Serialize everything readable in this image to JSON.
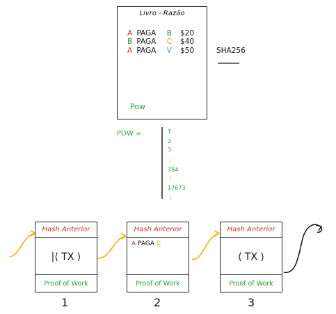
{
  "ledger": {
    "title": "Livro - Razão",
    "rows": [
      {
        "from": "A",
        "verb": "PAGA",
        "to": "B",
        "amount": "$20",
        "from_color": "#c0392b",
        "to_color": "#2e8b2e"
      },
      {
        "from": "B",
        "verb": "PAGA",
        "to": "C",
        "amount": "$40",
        "from_color": "#2e8b2e",
        "to_color": "#e0a400"
      },
      {
        "from": "A",
        "verb": "PAGA",
        "to": "V",
        "amount": "$50",
        "from_color": "#c0392b",
        "to_color": "#4a90c8"
      }
    ],
    "pow_label": "Pow"
  },
  "hash_fn": {
    "label": "SHA256"
  },
  "pow_search": {
    "label": "POW =",
    "nonces": [
      "1",
      "2",
      "3",
      "⋮",
      "784",
      "⋮",
      "17673",
      "⋮"
    ]
  },
  "blocks": [
    {
      "number": "1",
      "hash_label": "Hash Anterior",
      "tx_text": "|⟨  TX  ⟩",
      "pow_label": "Proof of Work"
    },
    {
      "number": "2",
      "hash_label": "Hash Anterior",
      "tx_from": "A",
      "tx_verb": "PAGA",
      "tx_to": "C",
      "pow_label": "Proof of Work"
    },
    {
      "number": "3",
      "hash_label": "Hash Anterior",
      "tx_text": "⟨  TX  ⟩",
      "pow_label": "Proof of Work"
    }
  ],
  "colors": {
    "red": "#c0392b",
    "green": "#2e9a3a",
    "orange": "#e0a400",
    "blue": "#4a90c8",
    "arrow": "#f0b400"
  }
}
